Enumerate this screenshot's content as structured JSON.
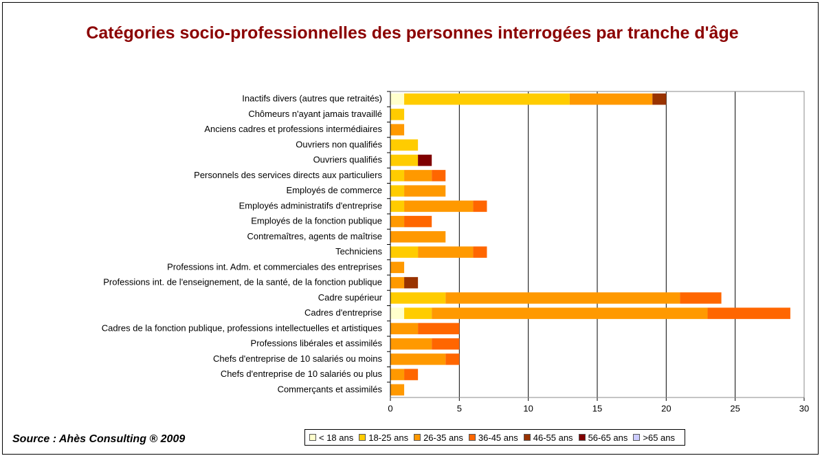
{
  "chart_data": {
    "type": "stacked_barh",
    "title": "Catégories socio-professionnelles des personnes interrogées par tranche d'âge",
    "source": "Source : Ahès Consulting ® 2009",
    "categories": [
      "Inactifs divers (autres que retraités)",
      "Chômeurs n'ayant jamais travaillé",
      "Anciens cadres et professions intermédiaires",
      "Ouvriers non qualifiés",
      "Ouvriers qualifiés",
      "Personnels des services directs aux particuliers",
      "Employés de commerce",
      "Employés administratifs d'entreprise",
      "Employés de la fonction publique",
      "Contremaîtres, agents de maîtrise",
      "Techniciens",
      "Professions int. Adm. et commerciales des entreprises",
      "Professions int. de l'enseignement, de la santé, de la fonction publique",
      "Cadre supérieur",
      "Cadres d'entreprise",
      "Cadres de la fonction publique, professions intellectuelles et  artistiques",
      "Professions libérales et assimilés",
      "Chefs d'entreprise de 10 salariés ou moins",
      "Chefs d'entreprise de 10 salariés ou plus",
      "Commerçants et assimilés"
    ],
    "series": [
      {
        "name": "< 18 ans",
        "color": "#ffffcc",
        "values": [
          1,
          0,
          0,
          0,
          0,
          0,
          0,
          0,
          0,
          0,
          0,
          0,
          0,
          0,
          1,
          0,
          0,
          0,
          0,
          0
        ]
      },
      {
        "name": "18-25 ans",
        "color": "#ffcc00",
        "values": [
          12,
          1,
          0,
          2,
          2,
          1,
          1,
          1,
          0,
          0,
          2,
          0,
          0,
          4,
          2,
          0,
          0,
          0,
          0,
          0
        ]
      },
      {
        "name": "26-35 ans",
        "color": "#ff9900",
        "values": [
          6,
          0,
          1,
          0,
          0,
          2,
          3,
          5,
          1,
          4,
          4,
          1,
          1,
          17,
          20,
          2,
          3,
          4,
          1,
          1
        ]
      },
      {
        "name": "36-45 ans",
        "color": "#ff6600",
        "values": [
          0,
          0,
          0,
          0,
          0,
          1,
          0,
          1,
          2,
          0,
          1,
          0,
          0,
          3,
          6,
          3,
          2,
          1,
          1,
          0
        ]
      },
      {
        "name": "46-55 ans",
        "color": "#993300",
        "values": [
          1,
          0,
          0,
          0,
          0,
          0,
          0,
          0,
          0,
          0,
          0,
          0,
          1,
          0,
          0,
          0,
          0,
          0,
          0,
          0
        ]
      },
      {
        "name": "56-65 ans",
        "color": "#800000",
        "values": [
          0,
          0,
          0,
          0,
          1,
          0,
          0,
          0,
          0,
          0,
          0,
          0,
          0,
          0,
          0,
          0,
          0,
          0,
          0,
          0
        ]
      },
      {
        "name": ">65 ans",
        "color": "#ccccff",
        "values": [
          0,
          0,
          0,
          0,
          0,
          0,
          0,
          0,
          0,
          0,
          0,
          0,
          0,
          0,
          0,
          0,
          0,
          0,
          0,
          0
        ]
      }
    ],
    "xlim": [
      0,
      30
    ],
    "xticks": [
      0,
      5,
      10,
      15,
      20,
      25,
      30
    ],
    "grid": true
  }
}
